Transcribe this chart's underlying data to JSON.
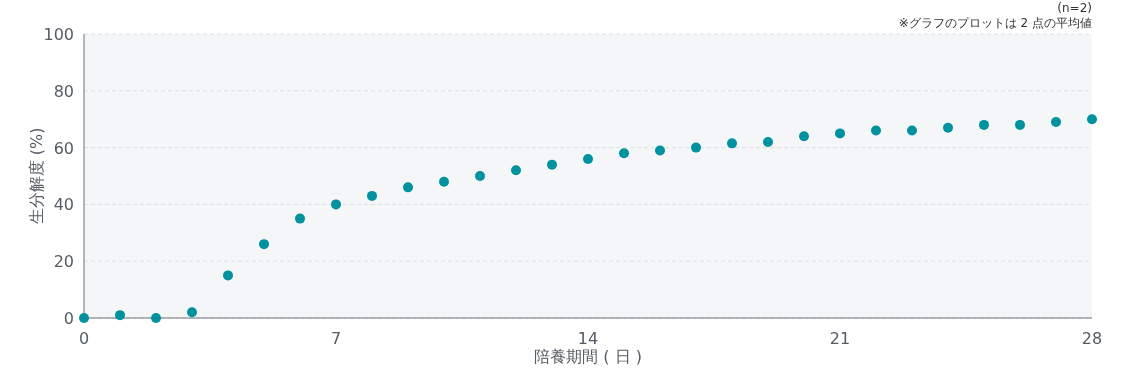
{
  "chart_data": {
    "type": "scatter",
    "xlabel": "陪養期間 ( 日 )",
    "ylabel": "生分解度 (%)",
    "annotations": [
      "(n=2)",
      "※グラフのプロットは 2 点の平均値"
    ],
    "x": [
      0,
      1,
      2,
      3,
      4,
      5,
      6,
      7,
      8,
      9,
      10,
      11,
      12,
      13,
      14,
      15,
      16,
      17,
      18,
      19,
      20,
      21,
      22,
      23,
      24,
      25,
      26,
      27,
      28
    ],
    "values": [
      0,
      1,
      0,
      2,
      15,
      26,
      35,
      40,
      43,
      46,
      48,
      50,
      52,
      54,
      56,
      58,
      59,
      60,
      61.5,
      62,
      64,
      65,
      66,
      66,
      67,
      68,
      68,
      69,
      70
    ],
    "color": "#00929f",
    "marker": "circle",
    "xlim": [
      0,
      28
    ],
    "xticks": [
      0,
      7,
      14,
      21,
      28
    ],
    "ylim": [
      0,
      100
    ],
    "yticks": [
      0,
      20,
      40,
      60,
      80,
      100
    ],
    "grid": "y"
  }
}
